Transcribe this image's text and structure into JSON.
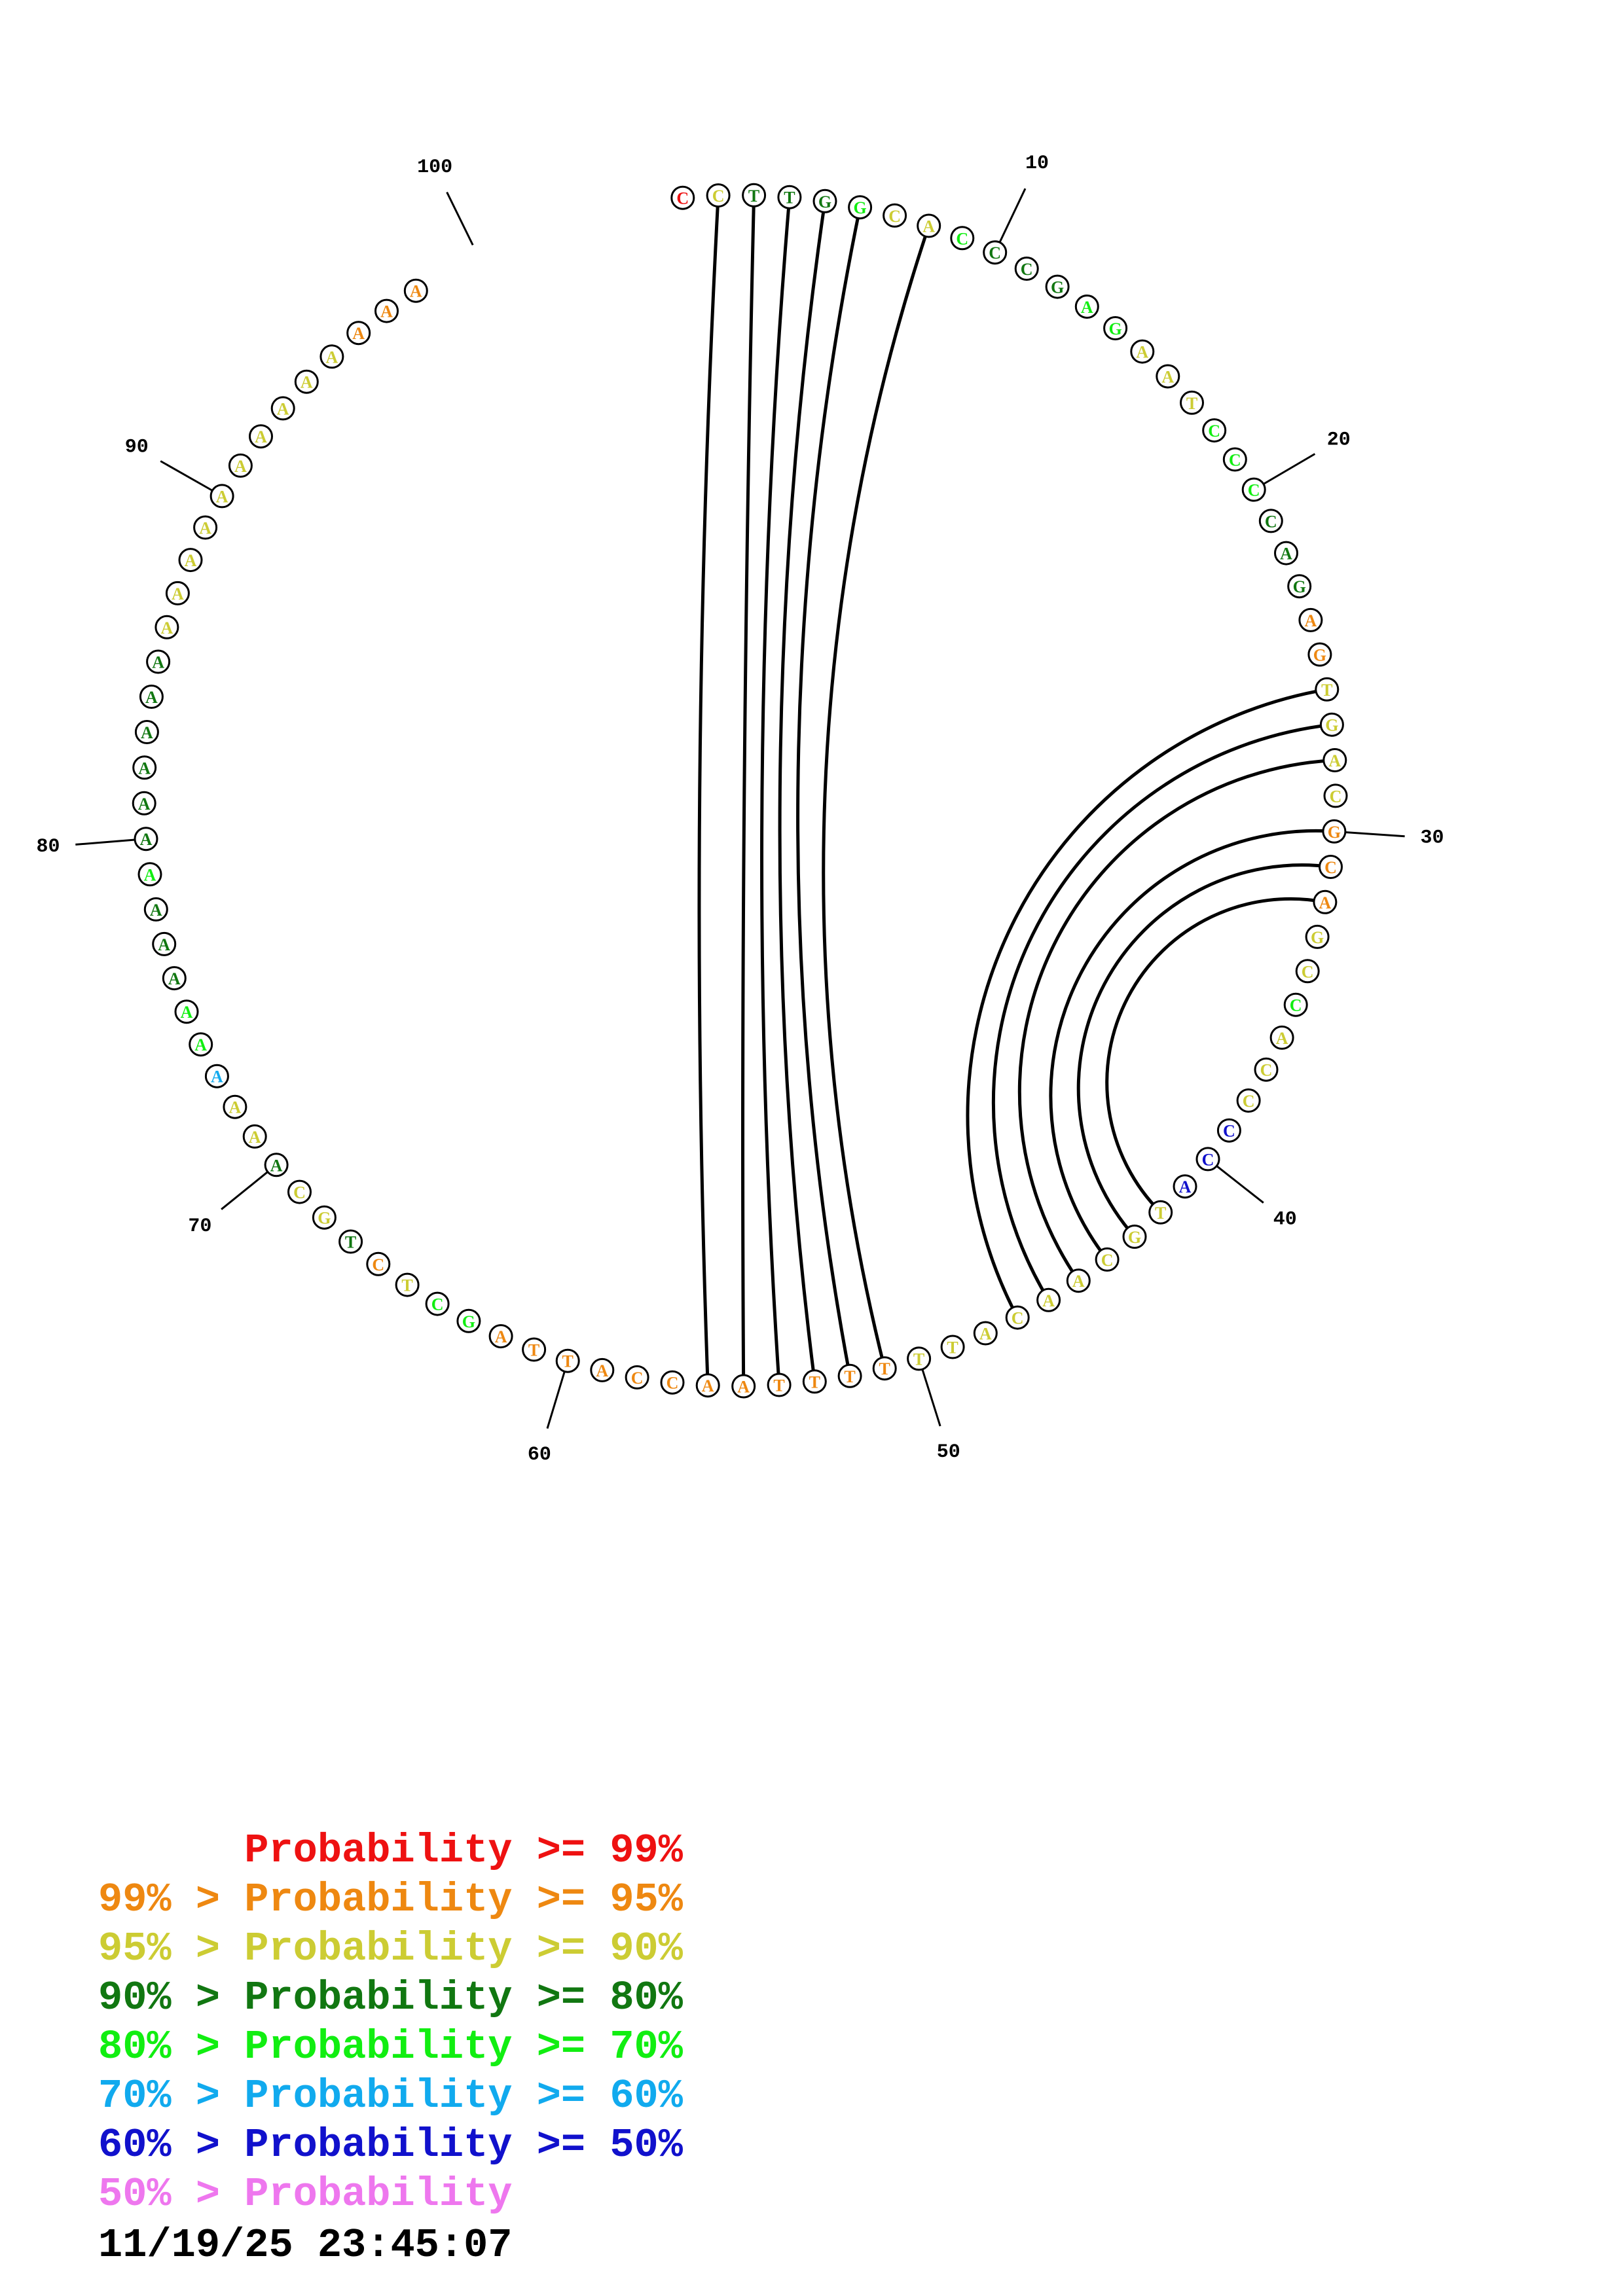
{
  "sequence": "CCTTGGCACCCGAGAATCCCCAGAGTGACGCAGCCACCCCATGCAACATTTTTTAACCATTAGCTCTGCAAAAAAAAAAAAAAAAAAAAAAAAAAAAA",
  "probability_codes": "023334224333442224443331122221112242226662222222221111111111114421322322544333433333322222222221111111",
  "position_labels": [
    "10",
    "20",
    "30",
    "40",
    "50",
    "60",
    "70",
    "80",
    "90",
    "100"
  ],
  "pairs": [
    [
      2,
      56
    ],
    [
      3,
      55
    ],
    [
      4,
      54
    ],
    [
      5,
      53
    ],
    [
      6,
      52
    ],
    [
      8,
      51
    ],
    [
      26,
      47
    ],
    [
      27,
      46
    ],
    [
      28,
      45
    ],
    [
      30,
      44
    ],
    [
      31,
      43
    ],
    [
      32,
      42
    ]
  ],
  "colors": {
    "prob_ge_99": "#ee1111",
    "prob_95_99": "#ee8811",
    "prob_90_95": "#cccc33",
    "prob_80_90": "#117711",
    "prob_70_80": "#11ee11",
    "prob_60_70": "#11aaee",
    "prob_50_60": "#1111cc",
    "prob_lt_50": "#ee77ee",
    "arc": "#000000"
  },
  "legend": [
    {
      "text": "      Probability >= 99%",
      "color": "#ee1111"
    },
    {
      "text": "99% > Probability >= 95%",
      "color": "#ee8811"
    },
    {
      "text": "95% > Probability >= 90%",
      "color": "#cccc33"
    },
    {
      "text": "90% > Probability >= 80%",
      "color": "#117711"
    },
    {
      "text": "80% > Probability >= 70%",
      "color": "#11ee11"
    },
    {
      "text": "70% > Probability >= 60%",
      "color": "#11aaee"
    },
    {
      "text": "60% > Probability >= 50%",
      "color": "#1111cc"
    },
    {
      "text": "50% > Probability",
      "color": "#ee77ee"
    }
  ],
  "timestamp": "11/19/25 23:45:07"
}
